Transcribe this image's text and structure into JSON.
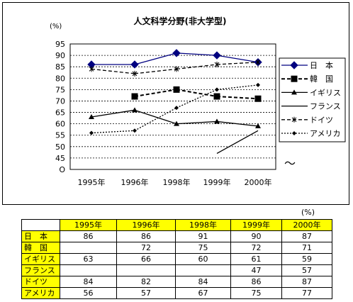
{
  "chart_data": {
    "type": "line",
    "title": "人文科学分野(非大学型)",
    "unit": "(%)",
    "categories": [
      "1995年",
      "1996年",
      "1998年",
      "1999年",
      "2000年"
    ],
    "yticks": [
      "95",
      "90",
      "85",
      "80",
      "75",
      "70",
      "65",
      "60",
      "55",
      "50",
      "45",
      "O"
    ],
    "ylim": [
      40,
      95
    ],
    "grid": true,
    "legend_position": "right",
    "series": [
      {
        "name": "日　本",
        "values": [
          86,
          86,
          91,
          90,
          87
        ],
        "color": "#000080",
        "marker": "diamond",
        "dash": "solid"
      },
      {
        "name": "韓　国",
        "values": [
          null,
          72,
          75,
          72,
          71
        ],
        "color": "#000000",
        "marker": "square",
        "dash": "dashed"
      },
      {
        "name": "イギリス",
        "values": [
          63,
          66,
          60,
          61,
          59
        ],
        "color": "#000000",
        "marker": "triangle",
        "dash": "solid"
      },
      {
        "name": "フランス",
        "values": [
          null,
          null,
          null,
          47,
          57
        ],
        "color": "#000000",
        "marker": "none",
        "dash": "solid"
      },
      {
        "name": "ドイツ",
        "values": [
          84,
          82,
          84,
          86,
          87
        ],
        "color": "#000000",
        "marker": "x",
        "dash": "dashed"
      },
      {
        "name": "アメリカ",
        "values": [
          56,
          57,
          67,
          75,
          77
        ],
        "color": "#000000",
        "marker": "diamond-small",
        "dash": "dotted"
      }
    ]
  },
  "table": {
    "unit": "(%)",
    "headers": [
      "1995年",
      "1996年",
      "1998年",
      "1999年",
      "2000年"
    ],
    "rows": [
      {
        "label": "日　本",
        "cells": [
          "86",
          "86",
          "91",
          "90",
          "87"
        ]
      },
      {
        "label": "韓　国",
        "cells": [
          "",
          "72",
          "75",
          "72",
          "71"
        ]
      },
      {
        "label": "イギリス",
        "cells": [
          "63",
          "66",
          "60",
          "61",
          "59"
        ]
      },
      {
        "label": "フランス",
        "cells": [
          "",
          "",
          "",
          "47",
          "57"
        ]
      },
      {
        "label": "ドイツ",
        "cells": [
          "84",
          "82",
          "84",
          "86",
          "87"
        ]
      },
      {
        "label": "アメリカ",
        "cells": [
          "56",
          "57",
          "67",
          "75",
          "77"
        ]
      }
    ]
  },
  "axis_break_symbol": "〜",
  "colors": {
    "highlight": "#ffff00",
    "japan_line": "#000080"
  }
}
